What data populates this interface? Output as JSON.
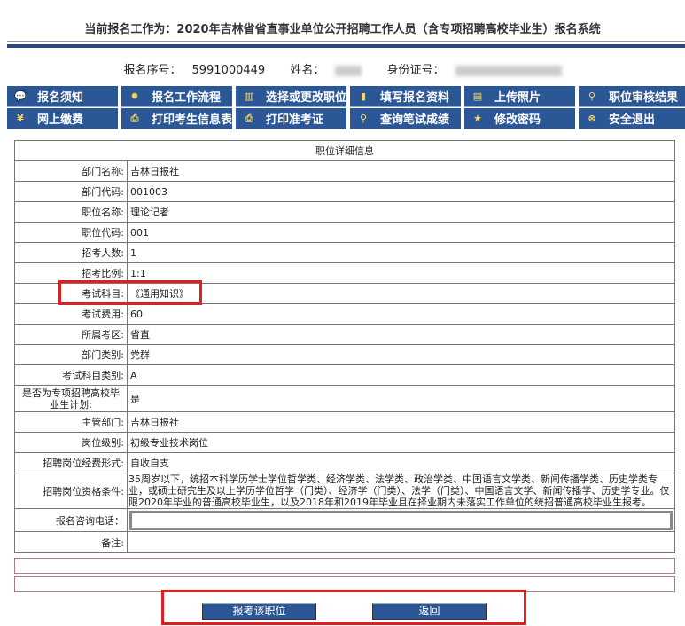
{
  "header": {
    "title": "当前报名工作为：2020年吉林省省直事业单位公开招聘工作人员（含专项招聘高校毕业生）报名系统"
  },
  "info": {
    "serial_label": "报名序号：",
    "serial": "5991000449",
    "name_label": "姓名：",
    "id_label": "身份证号："
  },
  "nav": [
    {
      "label": "报名须知",
      "icon": "notice-icon",
      "glyph": "💬"
    },
    {
      "label": "报名工作流程",
      "icon": "sun-icon",
      "glyph": "✹"
    },
    {
      "label": "选择或更改职位",
      "icon": "book-icon",
      "glyph": "▥"
    },
    {
      "label": "填写报名资料",
      "icon": "pencil-icon",
      "glyph": "▮"
    },
    {
      "label": "上传照片",
      "icon": "picture-icon",
      "glyph": "▤"
    },
    {
      "label": "职位审核结果",
      "icon": "magnifier-icon",
      "glyph": "⚲"
    },
    {
      "label": "网上缴费",
      "icon": "yuan-icon",
      "glyph": "¥"
    },
    {
      "label": "打印考生信息表",
      "icon": "printer-icon",
      "glyph": "⎙"
    },
    {
      "label": "打印准考证",
      "icon": "printer-icon",
      "glyph": "⎙"
    },
    {
      "label": "查询笔试成绩",
      "icon": "magnifier-icon",
      "glyph": "⚲"
    },
    {
      "label": "修改密码",
      "icon": "star-icon",
      "glyph": "★"
    },
    {
      "label": "安全退出",
      "icon": "exit-icon",
      "glyph": "⊗"
    }
  ],
  "table": {
    "heading": "职位详细信息",
    "rows": [
      {
        "label": "部门名称:",
        "value": "吉林日报社"
      },
      {
        "label": "部门代码:",
        "value": "001003"
      },
      {
        "label": "职位名称:",
        "value": "理论记者"
      },
      {
        "label": "职位代码:",
        "value": "001"
      },
      {
        "label": "招考人数:",
        "value": "1"
      },
      {
        "label": "招考比例:",
        "value": "1:1"
      },
      {
        "label": "考试科目:",
        "value": "《通用知识》"
      },
      {
        "label": "考试费用:",
        "value": "60"
      },
      {
        "label": "所属考区:",
        "value": "省直"
      },
      {
        "label": "部门类别:",
        "value": "党群"
      },
      {
        "label": "考试科目类别:",
        "value": "A"
      },
      {
        "label": "是否为专项招聘高校毕业生计划:",
        "value": "是"
      },
      {
        "label": "主管部门:",
        "value": "吉林日报社"
      },
      {
        "label": "岗位级别:",
        "value": "初级专业技术岗位"
      },
      {
        "label": "招聘岗位经费形式:",
        "value": "自收自支"
      },
      {
        "label": "招聘岗位资格条件:",
        "value": "35周岁以下，统招本科学历学士学位哲学类、经济学类、法学类、政治学类、中国语言文学类、新闻传播学类、历史学类专业，或硕士研究生及以上学历学位哲学（门类）、经济学（门类）、法学（门类）、中国语言文学、新闻传播学、历史学专业。仅限2020年毕业的普通高校毕业生，以及2018年和2019年毕业且在择业期内未落实工作单位的统招普通高校毕业生报考。"
      }
    ],
    "phone_label": "报名咨询电话：",
    "note_label": "备注:"
  },
  "buttons": {
    "apply": "报考该职位",
    "back": "返回"
  },
  "colors": {
    "nav": "#2c5797",
    "highlight": "#e02020"
  }
}
